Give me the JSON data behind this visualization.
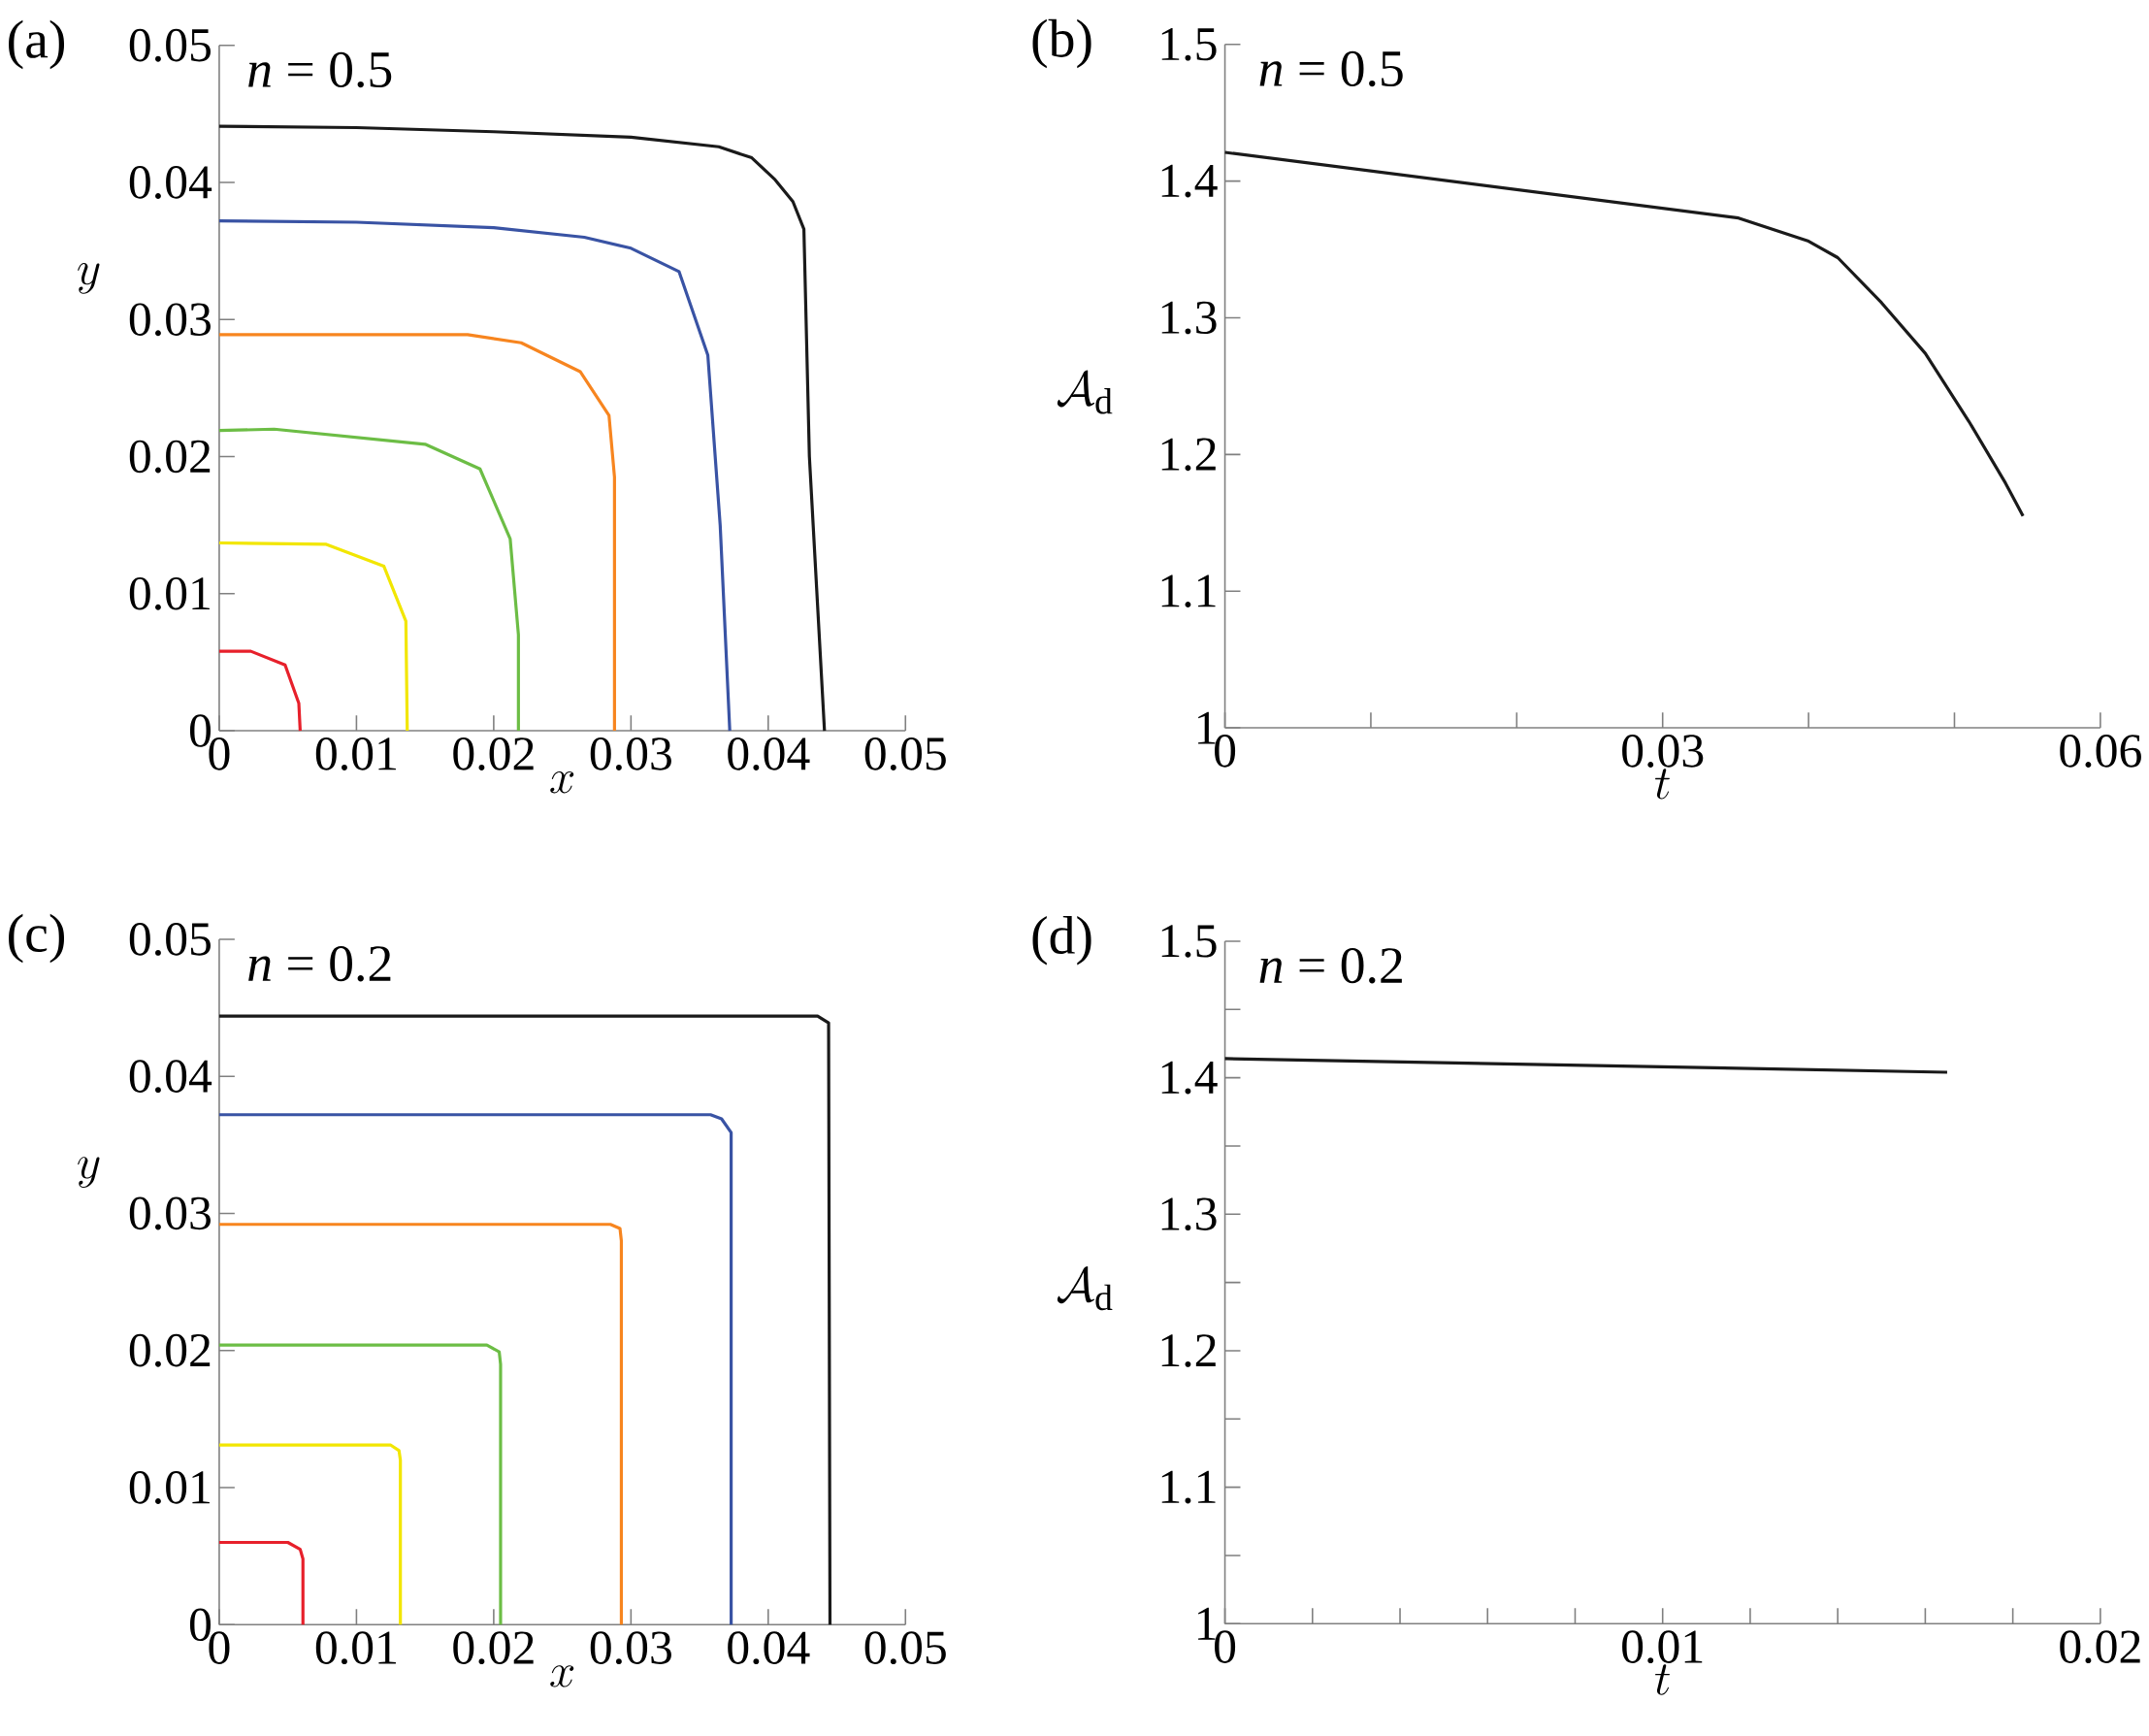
{
  "chart_data": [
    {
      "type": "line",
      "title": "(a)",
      "xlabel": "x",
      "ylabel": "y",
      "annotations": [
        "*n* = 0.5"
      ],
      "xlim": [
        0,
        0.05
      ],
      "ylim": [
        0,
        0.05
      ],
      "xticks": [
        0,
        0.01,
        0.02,
        0.03,
        0.04,
        0.05
      ],
      "yticks": [
        0,
        0.01,
        0.02,
        0.03,
        0.04,
        0.05
      ],
      "series": [
        {
          "color": "#e7202b",
          "x": [
            0,
            0.0023,
            0.0048,
            0.0058,
            0.0059
          ],
          "values": [
            0.0058,
            0.0058,
            0.0048,
            0.002,
            0
          ]
        },
        {
          "color": "#f2e600",
          "x": [
            0,
            0.0078,
            0.012,
            0.0136,
            0.0137
          ],
          "values": [
            0.0137,
            0.0136,
            0.012,
            0.008,
            0
          ]
        },
        {
          "color": "#6cbd45",
          "x": [
            0,
            0.004,
            0.015,
            0.019,
            0.0212,
            0.0218,
            0.0218
          ],
          "values": [
            0.0219,
            0.022,
            0.0209,
            0.0191,
            0.014,
            0.007,
            0
          ]
        },
        {
          "color": "#f7851f",
          "x": [
            0,
            0.0181,
            0.022,
            0.0263,
            0.0284,
            0.0288,
            0.0288
          ],
          "values": [
            0.0289,
            0.0289,
            0.0283,
            0.0262,
            0.023,
            0.0185,
            0
          ]
        },
        {
          "color": "#3953a4",
          "x": [
            0,
            0.01,
            0.02,
            0.0266,
            0.03,
            0.0335,
            0.0356,
            0.0365,
            0.0372
          ],
          "values": [
            0.0372,
            0.0371,
            0.0367,
            0.036,
            0.0352,
            0.0335,
            0.0274,
            0.015,
            0
          ]
        },
        {
          "color": "#1a1a1a",
          "x": [
            0,
            0.01,
            0.02,
            0.03,
            0.0364,
            0.0388,
            0.0405,
            0.0418,
            0.0426,
            0.043,
            0.0441
          ],
          "values": [
            0.0441,
            0.044,
            0.0437,
            0.0433,
            0.0426,
            0.0418,
            0.0402,
            0.0386,
            0.0366,
            0.02,
            0
          ]
        }
      ]
    },
    {
      "type": "line",
      "title": "(b)",
      "xlabel": "t",
      "ylabel": "\\mathcal{A}_\\mathrm{d}",
      "annotations": [
        "*n* = 0.5"
      ],
      "xlim": [
        0,
        0.06
      ],
      "ylim": [
        1,
        1.5
      ],
      "xticks": [
        0,
        {
          "value": 0.01,
          "label": null
        },
        {
          "value": 0.02,
          "label": null
        },
        0.03,
        {
          "value": 0.04,
          "label": null
        },
        {
          "value": 0.05,
          "label": null
        },
        0.06
      ],
      "yticks": [
        1,
        1.1,
        1.2,
        1.3,
        1.4,
        1.5
      ],
      "series": [
        {
          "color": "#1a1a1a",
          "x": [
            0,
            0.0352,
            0.04,
            0.042,
            0.045,
            0.048,
            0.051,
            0.0535,
            0.0547
          ],
          "values": [
            1.421,
            1.373,
            1.356,
            1.344,
            1.311,
            1.274,
            1.224,
            1.179,
            1.155
          ]
        }
      ]
    },
    {
      "type": "line",
      "title": "(c)",
      "xlabel": "x",
      "ylabel": "y",
      "annotations": [
        "*n* = 0.2"
      ],
      "xlim": [
        0,
        0.05
      ],
      "ylim": [
        0,
        0.05
      ],
      "xticks": [
        0,
        0.01,
        0.02,
        0.03,
        0.04,
        0.05
      ],
      "yticks": [
        0,
        0.01,
        0.02,
        0.03,
        0.04,
        0.05
      ],
      "series": [
        {
          "color": "#e7202b",
          "x": [
            0,
            0.005,
            0.0059,
            0.0061,
            0.0061
          ],
          "values": [
            0.006,
            0.006,
            0.0055,
            0.0048,
            0
          ]
        },
        {
          "color": "#f2e600",
          "x": [
            0,
            0.0125,
            0.0131,
            0.0132,
            0.0132
          ],
          "values": [
            0.0131,
            0.0131,
            0.0127,
            0.012,
            0
          ]
        },
        {
          "color": "#6cbd45",
          "x": [
            0,
            0.0195,
            0.0204,
            0.0205,
            0.0205
          ],
          "values": [
            0.0204,
            0.0204,
            0.0199,
            0.019,
            0
          ]
        },
        {
          "color": "#f7851f",
          "x": [
            0,
            0.0285,
            0.0292,
            0.0293,
            0.0293
          ],
          "values": [
            0.0292,
            0.0292,
            0.0289,
            0.028,
            0
          ]
        },
        {
          "color": "#3953a4",
          "x": [
            0,
            0.0358,
            0.0366,
            0.0373,
            0.0373
          ],
          "values": [
            0.0372,
            0.0372,
            0.0369,
            0.0359,
            0
          ]
        },
        {
          "color": "#1a1a1a",
          "x": [
            0,
            0.0436,
            0.0444,
            0.0445
          ],
          "values": [
            0.0444,
            0.0444,
            0.0439,
            0
          ]
        }
      ]
    },
    {
      "type": "line",
      "title": "(d)",
      "xlabel": "t",
      "ylabel": "\\mathcal{A}_\\mathrm{d}",
      "annotations": [
        "*n* = 0.2"
      ],
      "xlim": [
        0,
        0.02
      ],
      "ylim": [
        1,
        1.5
      ],
      "xticks": [
        0,
        {
          "value": 0.002,
          "label": null
        },
        {
          "value": 0.004,
          "label": null
        },
        {
          "value": 0.006,
          "label": null
        },
        {
          "value": 0.008,
          "label": null
        },
        0.01,
        {
          "value": 0.012,
          "label": null
        },
        {
          "value": 0.014,
          "label": null
        },
        {
          "value": 0.016,
          "label": null
        },
        {
          "value": 0.018,
          "label": null
        },
        0.02
      ],
      "yticks": [
        1,
        {
          "value": 1.05,
          "label": null
        },
        1.1,
        {
          "value": 1.15,
          "label": null
        },
        1.2,
        {
          "value": 1.25,
          "label": null
        },
        1.3,
        {
          "value": 1.35,
          "label": null
        },
        1.4,
        {
          "value": 1.45,
          "label": null
        },
        1.5
      ],
      "series": [
        {
          "color": "#1a1a1a",
          "x": [
            0,
            0.0165
          ],
          "values": [
            1.414,
            1.404
          ]
        }
      ]
    }
  ]
}
